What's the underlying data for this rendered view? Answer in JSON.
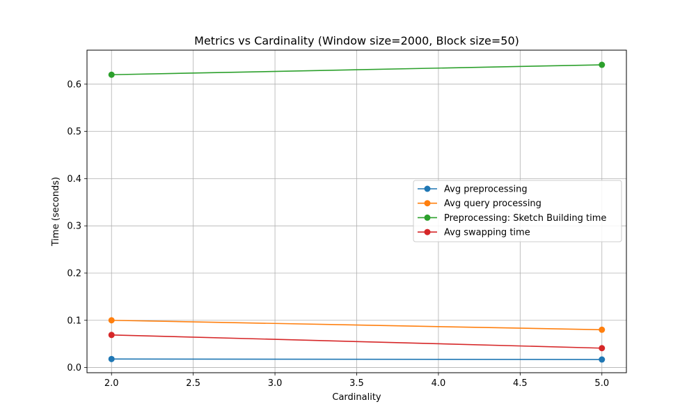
{
  "chart_data": {
    "type": "line",
    "title": "Metrics vs Cardinality (Window size=2000, Block size=50)",
    "xlabel": "Cardinality",
    "ylabel": "Time (seconds)",
    "xlim": [
      1.85,
      5.15
    ],
    "ylim": [
      -0.011,
      0.672
    ],
    "x_ticks": [
      2.0,
      2.5,
      3.0,
      3.5,
      4.0,
      4.5,
      5.0
    ],
    "y_ticks": [
      0.0,
      0.1,
      0.2,
      0.3,
      0.4,
      0.5,
      0.6
    ],
    "x_tick_labels": [
      "2.0",
      "2.5",
      "3.0",
      "3.5",
      "4.0",
      "4.5",
      "5.0"
    ],
    "y_tick_labels": [
      "0.0",
      "0.1",
      "0.2",
      "0.3",
      "0.4",
      "0.5",
      "0.6"
    ],
    "grid": true,
    "legend_position": "center-right",
    "x": [
      2,
      5
    ],
    "series": [
      {
        "name": "Avg preprocessing",
        "values": [
          0.018,
          0.017
        ],
        "color": "#1f77b4"
      },
      {
        "name": "Avg query processing",
        "values": [
          0.1,
          0.08
        ],
        "color": "#ff7f0e"
      },
      {
        "name": "Preprocessing: Sketch Building time",
        "values": [
          0.62,
          0.641
        ],
        "color": "#2ca02c"
      },
      {
        "name": "Avg swapping time",
        "values": [
          0.069,
          0.041
        ],
        "color": "#d62728"
      }
    ]
  }
}
